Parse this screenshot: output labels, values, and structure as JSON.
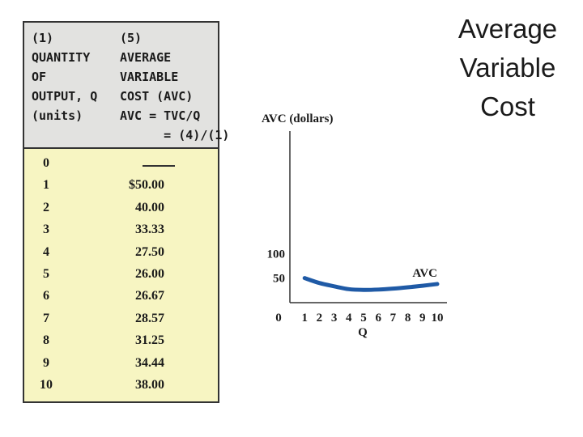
{
  "slide": {
    "title": "Average Variable Cost"
  },
  "table": {
    "col1_header": "(1)\nQUANTITY\nOF\nOUTPUT, Q\n(units)",
    "col2_header": "(5)\nAVERAGE\nVARIABLE\nCOST (AVC)\nAVC = TVC/Q\n      = (4)/(1)",
    "rows": [
      {
        "q": "0",
        "avc": ""
      },
      {
        "q": "1",
        "avc": "$50.00"
      },
      {
        "q": "2",
        "avc": "40.00"
      },
      {
        "q": "3",
        "avc": "33.33"
      },
      {
        "q": "4",
        "avc": "27.50"
      },
      {
        "q": "5",
        "avc": "26.00"
      },
      {
        "q": "6",
        "avc": "26.67"
      },
      {
        "q": "7",
        "avc": "28.57"
      },
      {
        "q": "8",
        "avc": "31.25"
      },
      {
        "q": "9",
        "avc": "34.44"
      },
      {
        "q": "10",
        "avc": "38.00"
      }
    ]
  },
  "chart_data": {
    "type": "line",
    "title": "",
    "ylabel": "AVC (dollars)",
    "xlabel": "Q",
    "x": [
      1,
      2,
      3,
      4,
      5,
      6,
      7,
      8,
      9,
      10
    ],
    "series": [
      {
        "name": "AVC",
        "values": [
          50.0,
          40.0,
          33.33,
          27.5,
          26.0,
          26.67,
          28.57,
          31.25,
          34.44,
          38.0
        ],
        "color": "#1f5aa6"
      }
    ],
    "xticks": [
      "0",
      "1",
      "2",
      "3",
      "4",
      "5",
      "6",
      "7",
      "8",
      "9",
      "10"
    ],
    "yticks": [
      "50",
      "100"
    ],
    "xlim": [
      0,
      10
    ],
    "ylim": [
      0,
      130
    ],
    "grid": false,
    "axis_color": "#333333"
  }
}
